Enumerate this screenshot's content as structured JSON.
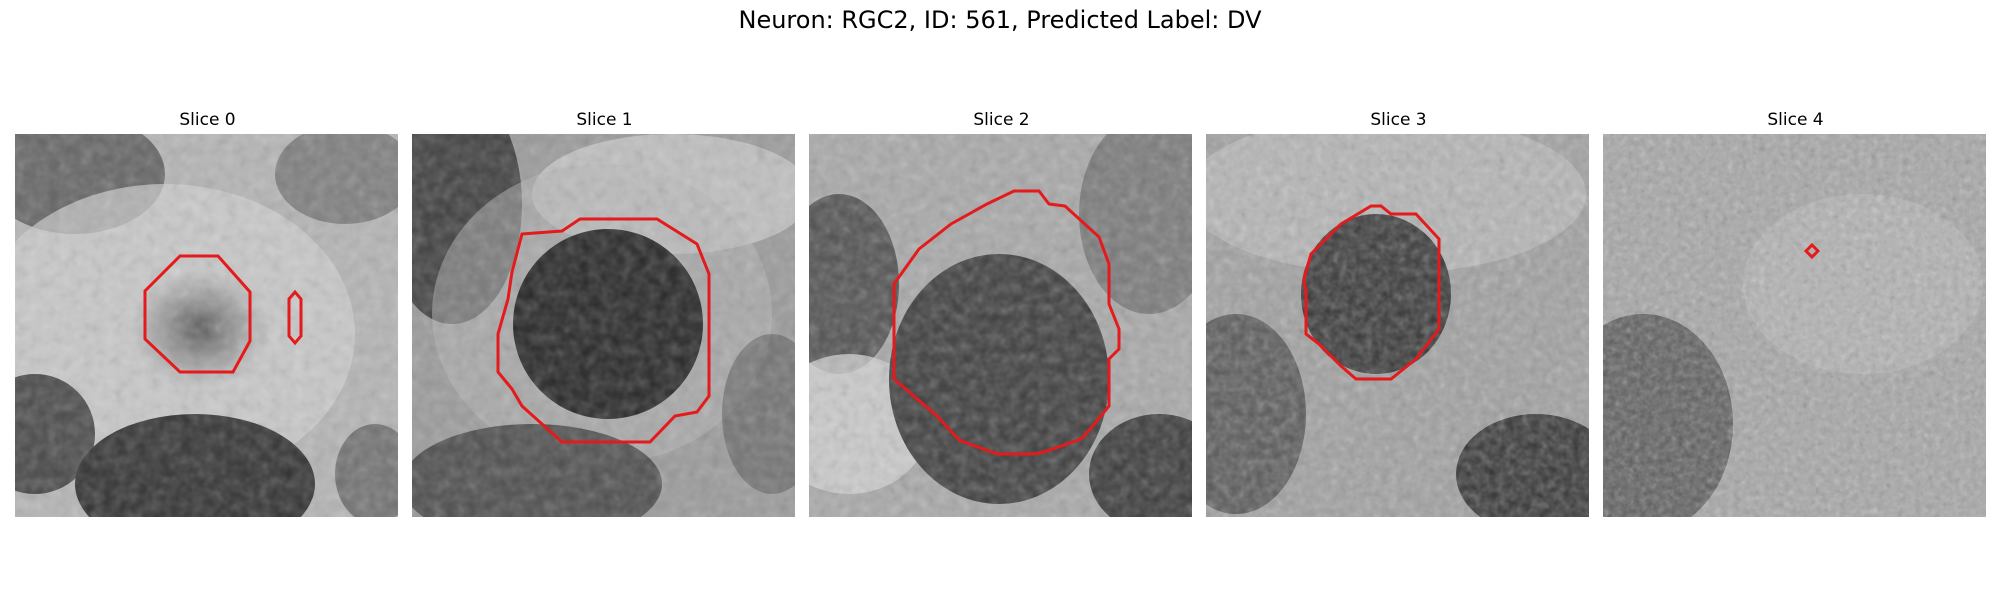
{
  "figure": {
    "title": "Neuron: RGC2, ID: 561, Predicted Label: DV"
  },
  "panels": [
    {
      "title": "Slice 0"
    },
    {
      "title": "Slice 1"
    },
    {
      "title": "Slice 2"
    },
    {
      "title": "Slice 3"
    },
    {
      "title": "Slice 4"
    }
  ],
  "colors": {
    "mask_outline": "#e41a1c",
    "background": "#ffffff"
  }
}
